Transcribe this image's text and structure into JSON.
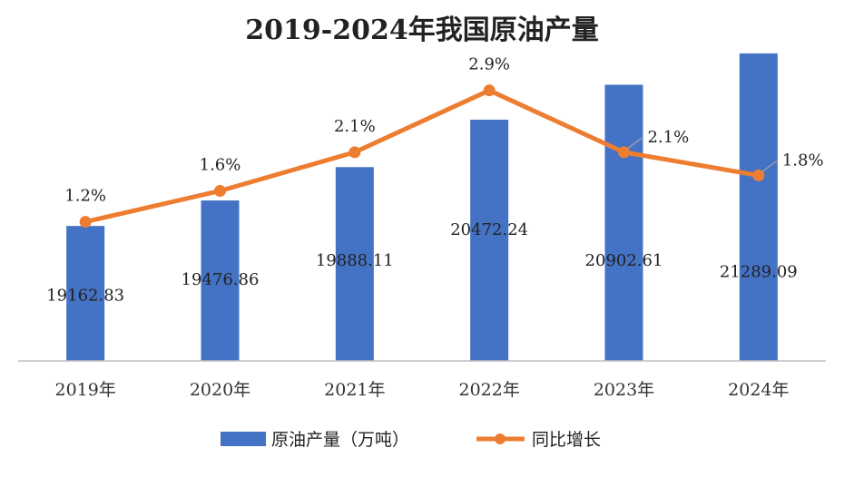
{
  "chart_data": {
    "type": "bar",
    "title": "2019-2024年我国原油产量",
    "categories": [
      "2019年",
      "2020年",
      "2021年",
      "2022年",
      "2023年",
      "2024年"
    ],
    "series": [
      {
        "name": "原油产量（万吨）",
        "type": "bar",
        "values": [
          19162.83,
          19476.86,
          19888.11,
          20472.24,
          20902.61,
          21289.09
        ],
        "labels": [
          "19162.83",
          "19476.86",
          "19888.11",
          "20472.24",
          "20902.61",
          "21289.09"
        ]
      },
      {
        "name": "同比增长",
        "type": "line",
        "values": [
          1.2,
          1.6,
          2.1,
          2.9,
          2.1,
          1.8
        ],
        "labels": [
          "1.2%",
          "1.6%",
          "2.1%",
          "2.9%",
          "2.1%",
          "1.8%"
        ]
      }
    ],
    "ylim_bar": [
      17500,
      21500
    ],
    "ylim_line": [
      -0.6,
      3.6
    ],
    "legend_position": "bottom",
    "grid": false,
    "colors": {
      "bar": "#4472C4",
      "line": "#ED7D31"
    }
  }
}
